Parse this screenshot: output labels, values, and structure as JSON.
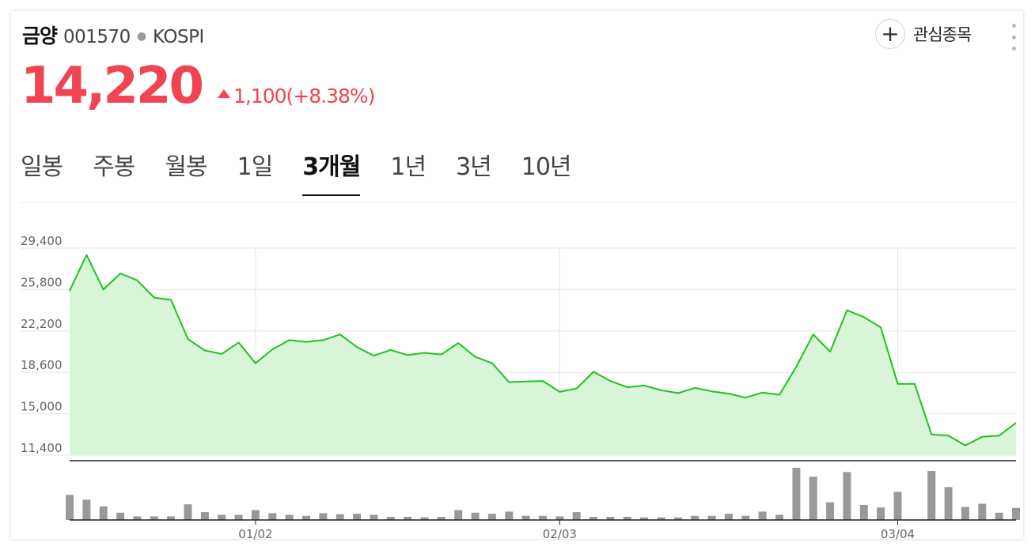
{
  "stock": {
    "name": "금양",
    "code": "001570",
    "market": "KOSPI",
    "price": "14,220",
    "change": "1,100(+8.38%)"
  },
  "actions": {
    "watchlist_label": "관심종목"
  },
  "tabs": [
    {
      "label": "일봉"
    },
    {
      "label": "주봉"
    },
    {
      "label": "월봉"
    },
    {
      "label": "1일"
    },
    {
      "label": "3개월",
      "active": true
    },
    {
      "label": "1년"
    },
    {
      "label": "3년"
    },
    {
      "label": "10년"
    }
  ],
  "colors": {
    "price_up": "#f04452",
    "line": "#1dc41d",
    "area": "#d8f5d8",
    "volume_bar": "#999999"
  },
  "chart_data": {
    "type": "area",
    "y_ticks": [
      "29,400",
      "25,800",
      "22,200",
      "18,600",
      "15,000",
      "11,400"
    ],
    "ylim": [
      11400,
      29400
    ],
    "x_tick_labels": [
      {
        "label": "01/02",
        "index": 11
      },
      {
        "label": "02/03",
        "index": 29
      },
      {
        "label": "03/04",
        "index": 49
      }
    ],
    "grid": true,
    "series": [
      {
        "values": [
          25700,
          28800,
          25800,
          27200,
          26600,
          25100,
          24900,
          21500,
          20500,
          20200,
          21200,
          19400,
          20600,
          21400,
          21250,
          21400,
          21900,
          20800,
          20050,
          20550,
          20100,
          20300,
          20150,
          21150,
          19950,
          19400,
          17750,
          17800,
          17850,
          16900,
          17200,
          18650,
          17850,
          17300,
          17450,
          17050,
          16800,
          17250,
          16950,
          16750,
          16400,
          16850,
          16650,
          19100,
          21900,
          20400,
          24000,
          23400,
          22500,
          17600,
          17600,
          13200,
          13100,
          12250,
          13000,
          13100,
          14220
        ]
      }
    ],
    "volume": [
      48,
      39,
      26,
      14,
      7,
      7,
      7,
      30,
      15,
      10,
      10,
      19,
      13,
      10,
      8,
      13,
      11,
      12,
      10,
      6,
      6,
      5,
      6,
      19,
      14,
      12,
      16,
      8,
      8,
      7,
      15,
      6,
      6,
      6,
      5,
      5,
      5,
      8,
      8,
      12,
      8,
      16,
      10,
      100,
      83,
      34,
      92,
      29,
      24,
      54,
      0,
      94,
      63,
      25,
      31,
      14,
      23
    ]
  }
}
